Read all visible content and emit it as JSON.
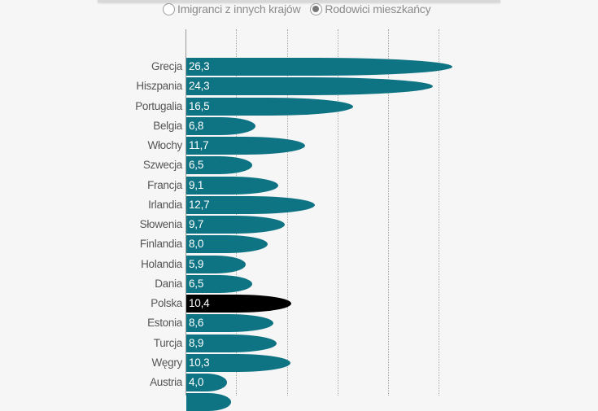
{
  "legend": {
    "options": [
      {
        "label": "Imigranci z innych krajów",
        "selected": false
      },
      {
        "label": "Rodowici mieszkańcy",
        "selected": true
      }
    ]
  },
  "colors": {
    "bar": "#0e7383",
    "highlight": "#000000",
    "background": "#f6f6f6"
  },
  "chart_data": {
    "type": "bar",
    "orientation": "horizontal",
    "title": "",
    "xlabel": "",
    "ylabel": "",
    "xlim": [
      0,
      27
    ],
    "gridlines_x": [
      0,
      5,
      10,
      15,
      20,
      25
    ],
    "grid": true,
    "legend_position": "top",
    "selected_series": "Rodowici mieszkańcy",
    "categories": [
      "Grecja",
      "Hiszpania",
      "Portugalia",
      "Belgia",
      "Włochy",
      "Szwecja",
      "Francja",
      "Irlandia",
      "Słowenia",
      "Finlandia",
      "Holandia",
      "Dania",
      "Polska",
      "Estonia",
      "Turcja",
      "Węgry",
      "Austria"
    ],
    "values": [
      26.3,
      24.3,
      16.5,
      6.8,
      11.7,
      6.5,
      9.1,
      12.7,
      9.7,
      8.0,
      5.9,
      6.5,
      10.4,
      8.6,
      8.9,
      10.3,
      4.0
    ],
    "value_labels": [
      "26,3",
      "24,3",
      "16,5",
      "6,8",
      "11,7",
      "6,5",
      "9,1",
      "12,7",
      "9,7",
      "8,0",
      "5,9",
      "6,5",
      "10,4",
      "8,6",
      "8,9",
      "10,3",
      "4,0"
    ],
    "highlighted": "Polska"
  }
}
